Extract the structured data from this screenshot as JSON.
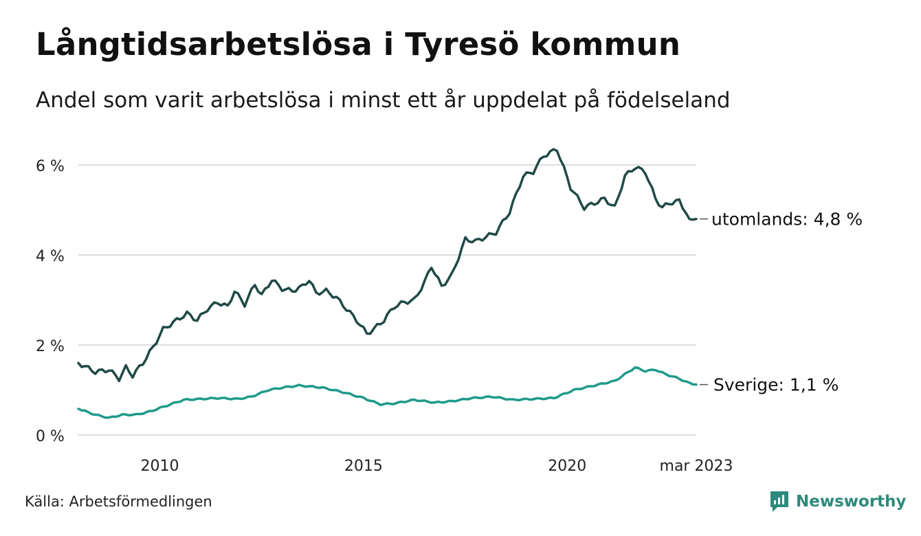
{
  "header": {
    "title": "Långtidsarbetslösa i Tyresö kommun",
    "subtitle": "Andel som varit arbetslösa i minst ett år uppdelat på födelseland"
  },
  "footer": {
    "source": "Källa: Arbetsförmedlingen",
    "brand": "Newsworthy",
    "brand_icon": "newsworthy-logo-icon"
  },
  "colors": {
    "utomlands": "#1f4a45",
    "sverige": "#1e9a8a",
    "grid": "#dddddd",
    "brand": "#2c8a7c"
  },
  "chart_data": {
    "type": "line",
    "x_start": "2008-01",
    "x_end": "2023-03",
    "x_step": "month",
    "x_ticks": [
      {
        "date": "2010-01",
        "label": "2010"
      },
      {
        "date": "2015-01",
        "label": "2015"
      },
      {
        "date": "2020-01",
        "label": "2020"
      },
      {
        "date": "2023-03",
        "label": "mar 2023"
      }
    ],
    "ylim": [
      0,
      6.5
    ],
    "y_ticks": [
      {
        "value": 0,
        "label": "0 %"
      },
      {
        "value": 2,
        "label": "2 %"
      },
      {
        "value": 4,
        "label": "4 %"
      },
      {
        "value": 6,
        "label": "6 %"
      }
    ],
    "grid": true,
    "series": [
      {
        "key": "utomlands",
        "end_label": "utomlands: 4,8 %",
        "anchors": [
          [
            "2008-01",
            1.6
          ],
          [
            "2008-06",
            1.4
          ],
          [
            "2008-10",
            1.45
          ],
          [
            "2009-01",
            1.25
          ],
          [
            "2009-03",
            1.5
          ],
          [
            "2009-05",
            1.32
          ],
          [
            "2009-08",
            1.6
          ],
          [
            "2009-11",
            1.95
          ],
          [
            "2010-02",
            2.35
          ],
          [
            "2010-06",
            2.55
          ],
          [
            "2010-09",
            2.7
          ],
          [
            "2010-12",
            2.55
          ],
          [
            "2011-03",
            2.8
          ],
          [
            "2011-06",
            2.95
          ],
          [
            "2011-09",
            2.85
          ],
          [
            "2011-11",
            3.2
          ],
          [
            "2012-02",
            2.9
          ],
          [
            "2012-05",
            3.35
          ],
          [
            "2012-07",
            3.1
          ],
          [
            "2012-10",
            3.45
          ],
          [
            "2013-01",
            3.25
          ],
          [
            "2013-04",
            3.2
          ],
          [
            "2013-07",
            3.3
          ],
          [
            "2013-09",
            3.45
          ],
          [
            "2013-11",
            3.15
          ],
          [
            "2014-02",
            3.2
          ],
          [
            "2014-05",
            3.05
          ],
          [
            "2014-08",
            2.8
          ],
          [
            "2014-11",
            2.55
          ],
          [
            "2015-02",
            2.25
          ],
          [
            "2015-04",
            2.35
          ],
          [
            "2015-07",
            2.55
          ],
          [
            "2015-10",
            2.85
          ],
          [
            "2016-01",
            2.95
          ],
          [
            "2016-04",
            3.0
          ],
          [
            "2016-07",
            3.4
          ],
          [
            "2016-09",
            3.75
          ],
          [
            "2016-12",
            3.3
          ],
          [
            "2017-03",
            3.55
          ],
          [
            "2017-07",
            4.35
          ],
          [
            "2017-10",
            4.3
          ],
          [
            "2018-01",
            4.4
          ],
          [
            "2018-04",
            4.5
          ],
          [
            "2018-08",
            4.95
          ],
          [
            "2018-12",
            5.75
          ],
          [
            "2019-03",
            5.85
          ],
          [
            "2019-06",
            6.2
          ],
          [
            "2019-10",
            6.35
          ],
          [
            "2020-02",
            5.5
          ],
          [
            "2020-06",
            5.05
          ],
          [
            "2020-09",
            5.15
          ],
          [
            "2020-12",
            5.25
          ],
          [
            "2021-03",
            5.05
          ],
          [
            "2021-06",
            5.75
          ],
          [
            "2021-09",
            5.95
          ],
          [
            "2021-12",
            5.85
          ],
          [
            "2022-03",
            5.25
          ],
          [
            "2022-05",
            5.05
          ],
          [
            "2022-07",
            5.15
          ],
          [
            "2022-10",
            5.2
          ],
          [
            "2022-12",
            4.95
          ],
          [
            "2023-01",
            4.75
          ],
          [
            "2023-03",
            4.8
          ]
        ]
      },
      {
        "key": "sverige",
        "end_label": "Sverige: 1,1 %",
        "anchors": [
          [
            "2008-01",
            0.58
          ],
          [
            "2008-06",
            0.45
          ],
          [
            "2008-10",
            0.38
          ],
          [
            "2009-02",
            0.45
          ],
          [
            "2009-06",
            0.45
          ],
          [
            "2009-10",
            0.52
          ],
          [
            "2010-03",
            0.65
          ],
          [
            "2010-08",
            0.78
          ],
          [
            "2011-01",
            0.8
          ],
          [
            "2011-06",
            0.82
          ],
          [
            "2011-12",
            0.8
          ],
          [
            "2012-04",
            0.85
          ],
          [
            "2012-09",
            1.0
          ],
          [
            "2013-01",
            1.05
          ],
          [
            "2013-06",
            1.1
          ],
          [
            "2014-01",
            1.05
          ],
          [
            "2014-07",
            0.95
          ],
          [
            "2015-01",
            0.82
          ],
          [
            "2015-06",
            0.68
          ],
          [
            "2015-10",
            0.7
          ],
          [
            "2016-04",
            0.78
          ],
          [
            "2016-10",
            0.72
          ],
          [
            "2017-03",
            0.75
          ],
          [
            "2017-09",
            0.82
          ],
          [
            "2018-03",
            0.85
          ],
          [
            "2018-09",
            0.78
          ],
          [
            "2019-03",
            0.8
          ],
          [
            "2019-09",
            0.82
          ],
          [
            "2020-03",
            1.0
          ],
          [
            "2020-09",
            1.1
          ],
          [
            "2021-03",
            1.2
          ],
          [
            "2021-06",
            1.35
          ],
          [
            "2021-09",
            1.5
          ],
          [
            "2021-12",
            1.42
          ],
          [
            "2022-03",
            1.45
          ],
          [
            "2022-06",
            1.35
          ],
          [
            "2022-10",
            1.25
          ],
          [
            "2023-01",
            1.15
          ],
          [
            "2023-03",
            1.12
          ]
        ]
      }
    ]
  }
}
